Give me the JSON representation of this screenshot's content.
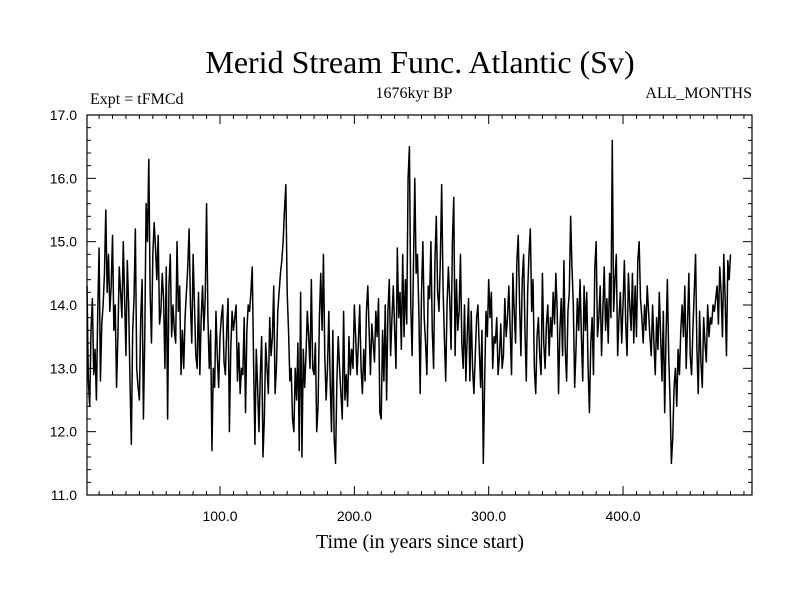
{
  "chart_data": {
    "type": "line",
    "title": "Merid Stream Func. Atlantic (Sv)",
    "subtitle": "1676kyr BP",
    "left_annotation": "Expt = tFMCd",
    "right_annotation": "ALL_MONTHS",
    "xlabel": "Time (in years since start)",
    "ylabel": "",
    "xlim": [
      1,
      496
    ],
    "ylim": [
      11.0,
      17.0
    ],
    "xticks": [
      100,
      200,
      300,
      400
    ],
    "xtick_labels": [
      "100.0",
      "200.0",
      "300.0",
      "400.0"
    ],
    "yticks": [
      11,
      12,
      13,
      14,
      15,
      16,
      17
    ],
    "ytick_labels": [
      "11.0",
      "12.0",
      "13.0",
      "14.0",
      "15.0",
      "16.0",
      "17.0"
    ],
    "grid": false,
    "line_color": "#000000",
    "series": [
      {
        "name": "Merid Stream Func. Atlantic",
        "x_start": 1,
        "x_step": 1,
        "values": [
          14.3,
          12.8,
          12.4,
          13.6,
          14.1,
          12.9,
          13.3,
          12.5,
          13.9,
          14.9,
          12.8,
          13.7,
          14.0,
          14.5,
          15.5,
          14.2,
          14.8,
          13.9,
          14.3,
          15.1,
          13.6,
          14.0,
          12.7,
          13.5,
          14.6,
          14.2,
          13.8,
          15.0,
          14.1,
          13.2,
          14.7,
          14.0,
          12.8,
          11.8,
          13.6,
          14.1,
          15.2,
          13.0,
          12.7,
          12.5,
          13.8,
          14.4,
          12.2,
          13.5,
          15.6,
          15.0,
          16.3,
          14.2,
          13.4,
          14.8,
          15.3,
          14.9,
          14.4,
          15.1,
          13.7,
          13.9,
          14.5,
          14.1,
          13.0,
          14.6,
          12.2,
          14.3,
          14.8,
          13.5,
          14.0,
          13.6,
          13.4,
          15.0,
          13.9,
          14.3,
          12.9,
          13.6,
          13.0,
          13.8,
          14.2,
          14.6,
          15.2,
          14.0,
          13.4,
          14.8,
          14.0,
          13.2,
          13.0,
          14.2,
          12.9,
          13.8,
          14.3,
          13.6,
          14.1,
          15.6,
          13.8,
          13.0,
          13.6,
          11.7,
          13.0,
          12.7,
          13.9,
          13.2,
          12.7,
          13.5,
          13.8,
          14.0,
          13.1,
          12.9,
          13.6,
          14.1,
          12.0,
          13.3,
          13.9,
          13.6,
          13.8,
          14.0,
          12.8,
          13.4,
          12.6,
          13.0,
          12.9,
          13.8,
          12.3,
          13.6,
          14.0,
          13.9,
          14.2,
          14.6,
          13.1,
          11.8,
          13.3,
          12.7,
          12.0,
          12.9,
          13.5,
          11.6,
          12.2,
          13.4,
          13.0,
          12.6,
          13.8,
          13.2,
          13.5,
          14.3,
          12.6,
          13.0,
          13.9,
          14.2,
          14.5,
          14.7,
          15.0,
          15.5,
          15.9,
          14.2,
          13.6,
          12.8,
          13.0,
          12.2,
          12.0,
          13.0,
          12.5,
          13.4,
          11.7,
          14.2,
          11.6,
          13.3,
          12.7,
          13.2,
          13.9,
          13.5,
          13.0,
          14.4,
          13.0,
          12.9,
          13.4,
          12.0,
          12.4,
          13.8,
          14.5,
          13.6,
          14.8,
          13.2,
          12.5,
          13.0,
          13.9,
          12.8,
          12.0,
          13.6,
          11.9,
          11.5,
          12.8,
          13.5,
          13.0,
          12.6,
          12.2,
          13.9,
          12.5,
          12.9,
          12.4,
          13.5,
          12.9,
          13.3,
          13.0,
          14.0,
          13.5,
          12.9,
          13.4,
          14.0,
          13.0,
          12.6,
          13.3,
          12.8,
          13.9,
          14.3,
          13.6,
          12.9,
          13.7,
          13.4,
          13.1,
          13.9,
          13.5,
          14.1,
          12.3,
          12.2,
          13.6,
          12.8,
          14.0,
          12.5,
          13.9,
          14.4,
          13.2,
          13.8,
          14.3,
          13.6,
          13.0,
          14.9,
          13.8,
          14.2,
          13.3,
          14.8,
          13.5,
          14.4,
          13.7,
          16.0,
          16.5,
          14.0,
          13.2,
          14.6,
          16.0,
          14.5,
          14.8,
          13.9,
          12.6,
          14.2,
          15.0,
          13.8,
          13.4,
          12.9,
          14.3,
          14.1,
          15.0,
          13.6,
          13.0,
          14.7,
          15.4,
          14.2,
          13.9,
          14.7,
          15.9,
          14.3,
          13.5,
          12.8,
          14.0,
          14.6,
          14.1,
          13.3,
          15.0,
          15.7,
          13.2,
          14.4,
          13.6,
          13.9,
          14.8,
          13.4,
          13.0,
          14.0,
          12.8,
          13.5,
          14.1,
          12.8,
          13.9,
          13.0,
          12.6,
          13.2,
          13.8,
          14.0,
          13.3,
          12.7,
          13.6,
          11.5,
          12.8,
          13.9,
          13.5,
          14.4,
          13.8,
          14.2,
          13.0,
          13.5,
          13.4,
          13.8,
          12.9,
          13.2,
          13.7,
          13.0,
          13.2,
          14.1,
          13.5,
          13.8,
          14.3,
          13.6,
          12.9,
          14.5,
          13.9,
          13.4,
          14.7,
          15.1,
          14.0,
          13.2,
          14.4,
          14.8,
          13.6,
          12.8,
          14.2,
          14.8,
          15.2,
          13.9,
          14.4,
          13.0,
          12.6,
          13.5,
          13.8,
          13.2,
          12.9,
          14.5,
          13.4,
          13.0,
          13.7,
          14.0,
          13.2,
          13.8,
          13.5,
          14.2,
          13.7,
          14.5,
          13.9,
          12.6,
          13.6,
          14.1,
          13.2,
          14.7,
          13.3,
          12.8,
          13.9,
          14.2,
          15.4,
          14.6,
          14.0,
          12.7,
          13.3,
          14.1,
          13.6,
          14.4,
          13.5,
          12.8,
          14.3,
          13.6,
          14.2,
          13.0,
          12.3,
          13.4,
          13.8,
          12.9,
          14.6,
          15.0,
          13.5,
          13.8,
          14.3,
          13.2,
          13.9,
          14.6,
          13.6,
          14.1,
          13.4,
          14.5,
          13.8,
          16.6,
          13.9,
          14.4,
          14.8,
          13.2,
          13.8,
          14.2,
          13.4,
          14.0,
          14.7,
          13.7,
          13.2,
          14.5,
          14.0,
          13.6,
          14.5,
          13.4,
          14.3,
          13.5,
          14.7,
          15.0,
          14.1,
          13.8,
          13.4,
          14.0,
          13.6,
          14.3,
          13.9,
          13.5,
          13.2,
          14.0,
          13.4,
          12.9,
          13.8,
          13.3,
          14.2,
          13.5,
          12.8,
          13.9,
          12.3,
          13.5,
          14.4,
          13.2,
          12.5,
          11.5,
          11.9,
          12.7,
          13.0,
          12.4,
          13.3,
          12.9,
          13.6,
          14.0,
          13.5,
          14.3,
          13.0,
          13.7,
          14.5,
          13.2,
          12.9,
          13.6,
          14.2,
          14.8,
          13.3,
          12.6,
          13.9,
          13.1,
          12.7,
          13.8,
          13.4,
          13.1,
          14.0,
          13.5,
          13.8,
          13.7,
          14.0,
          13.9,
          14.1,
          14.3,
          13.7,
          14.6,
          14.2,
          13.5,
          14.8,
          14.1,
          13.2,
          14.7,
          14.4,
          14.8
        ]
      }
    ]
  }
}
